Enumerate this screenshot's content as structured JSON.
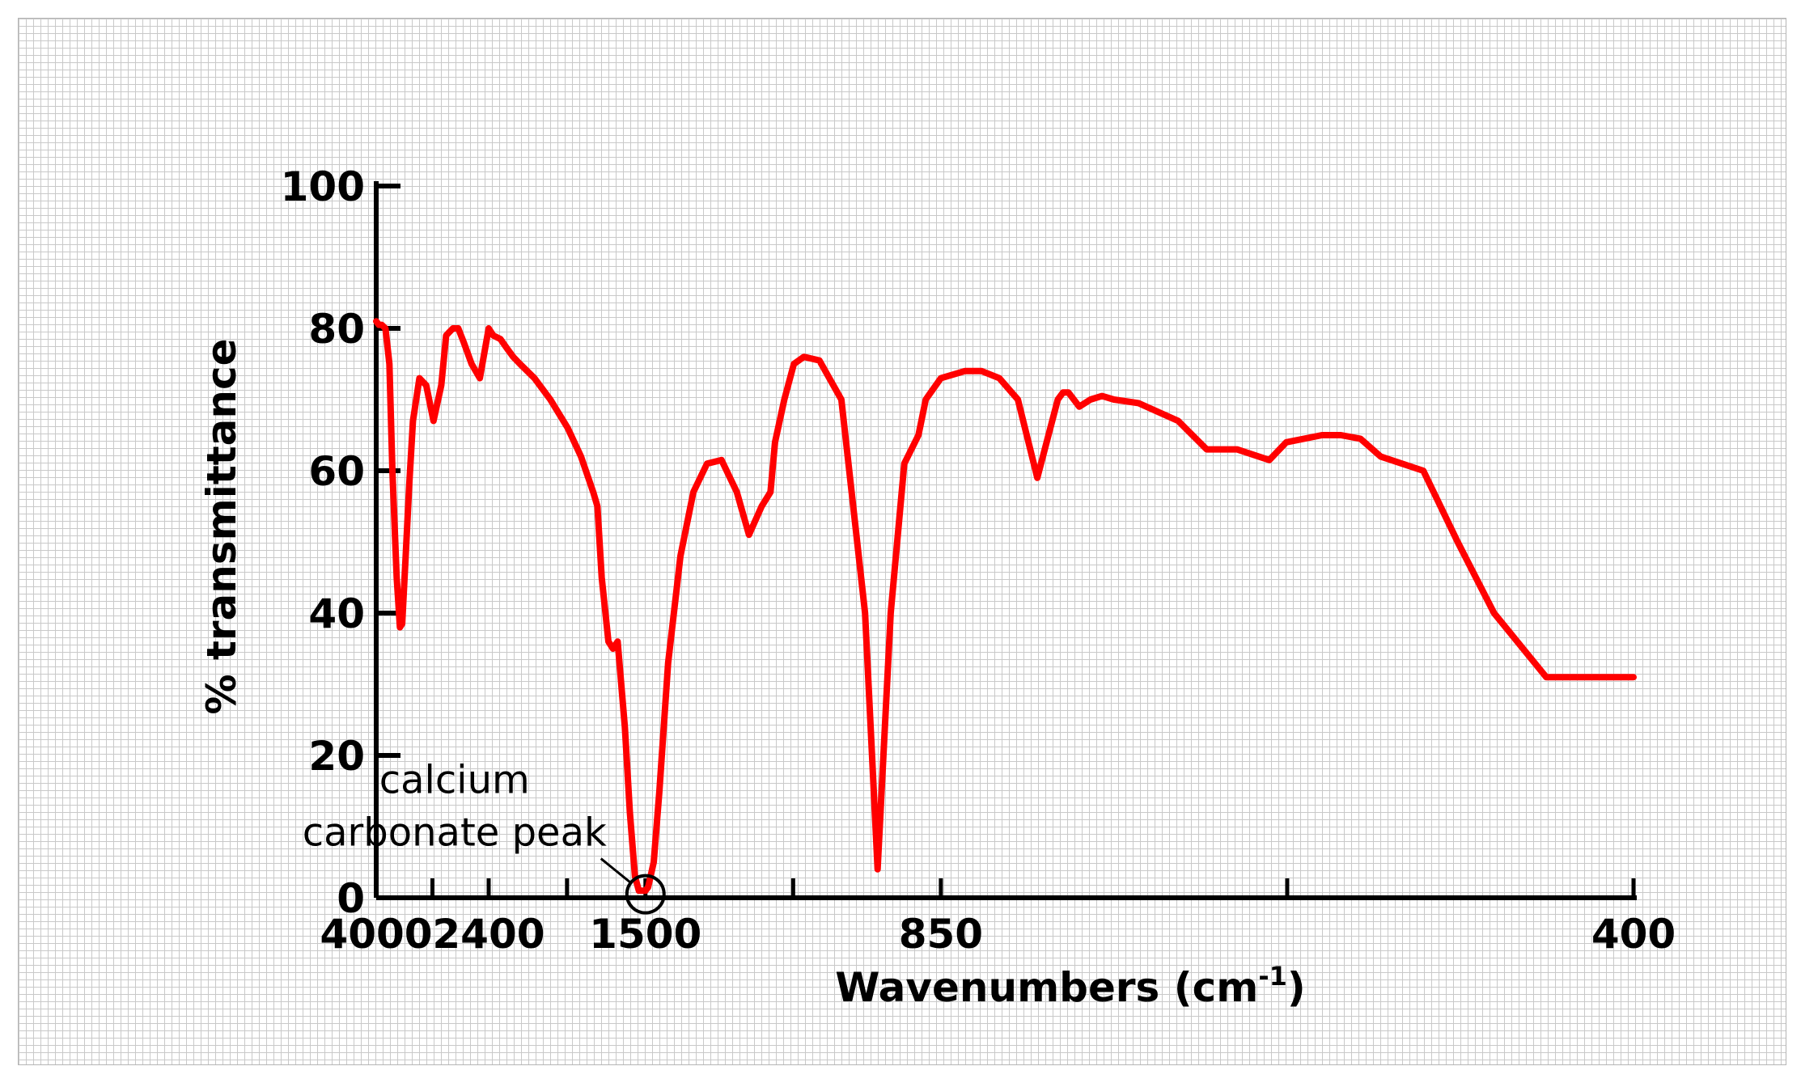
{
  "chart_data": {
    "type": "line",
    "title": "",
    "xlabel": "Wavenumbers (cm",
    "xlabel_sup": "-1",
    "xlabel_close": ")",
    "ylabel": "% transmittance",
    "xlim": [
      4000,
      400
    ],
    "ylim": [
      0,
      100
    ],
    "x_axis_scale": "reciprocal",
    "grid": "on",
    "legend": "none",
    "x_ticks": [
      4000,
      2400,
      1500,
      850,
      400
    ],
    "x_tick_labels": [
      "4000",
      "2400",
      "1500",
      "850",
      "400"
    ],
    "y_ticks": [
      0,
      20,
      40,
      60,
      80,
      100
    ],
    "y_tick_labels": [
      "0",
      "20",
      "40",
      "60",
      "80",
      "100"
    ],
    "line_color": "#ff0000",
    "series": [
      {
        "x": [
          4000,
          3940,
          3880,
          3800,
          3720,
          3660,
          3580,
          3520,
          3480,
          3420,
          3360,
          3300,
          3200,
          3100,
          3000,
          2900,
          2840,
          2800,
          2760,
          2700,
          2640,
          2560,
          2480,
          2400,
          2360,
          2300,
          2240,
          2200,
          2150,
          2050,
          1950,
          1850,
          1780,
          1720,
          1700,
          1680,
          1650,
          1630,
          1610,
          1580,
          1560,
          1540,
          1525,
          1510,
          1500,
          1490,
          1470,
          1450,
          1420,
          1380,
          1340,
          1300,
          1260,
          1220,
          1190,
          1160,
          1140,
          1130,
          1110,
          1090,
          1070,
          1040,
          1000,
          960,
          940,
          920,
          900,
          880,
          876,
          870,
          850,
          820,
          800,
          780,
          760,
          740,
          720,
          715,
          710,
          700,
          690,
          680,
          670,
          650,
          620,
          600,
          580,
          560,
          550,
          530,
          520,
          510,
          500,
          480,
          465,
          450,
          430,
          400
        ],
        "y": [
          81,
          80.5,
          80.5,
          80,
          75,
          60,
          45,
          38,
          38.5,
          48,
          58,
          67,
          73,
          72,
          67,
          72,
          79,
          79.5,
          80,
          80,
          78,
          75,
          73,
          80,
          79,
          78.5,
          77,
          76,
          75,
          73,
          70,
          66,
          62,
          57,
          55,
          45,
          36,
          35,
          36,
          24,
          12,
          3,
          1,
          1,
          1,
          1.5,
          5,
          15,
          33,
          48,
          57,
          61,
          61.5,
          57,
          51,
          55,
          57,
          64,
          70,
          75,
          76,
          75.5,
          70,
          40,
          4,
          40,
          61,
          65,
          67,
          70,
          73,
          74,
          74,
          73,
          70,
          59,
          70,
          71,
          71,
          69,
          70,
          70.5,
          70,
          69.5,
          67,
          63,
          63,
          61.5,
          64,
          65,
          65,
          64.5,
          62,
          60,
          50,
          40,
          31,
          31
        ]
      }
    ],
    "annotations": [
      {
        "text_line1": "calcium",
        "text_line2": "carbonate peak",
        "x": 1500,
        "y": 0.5
      }
    ]
  }
}
